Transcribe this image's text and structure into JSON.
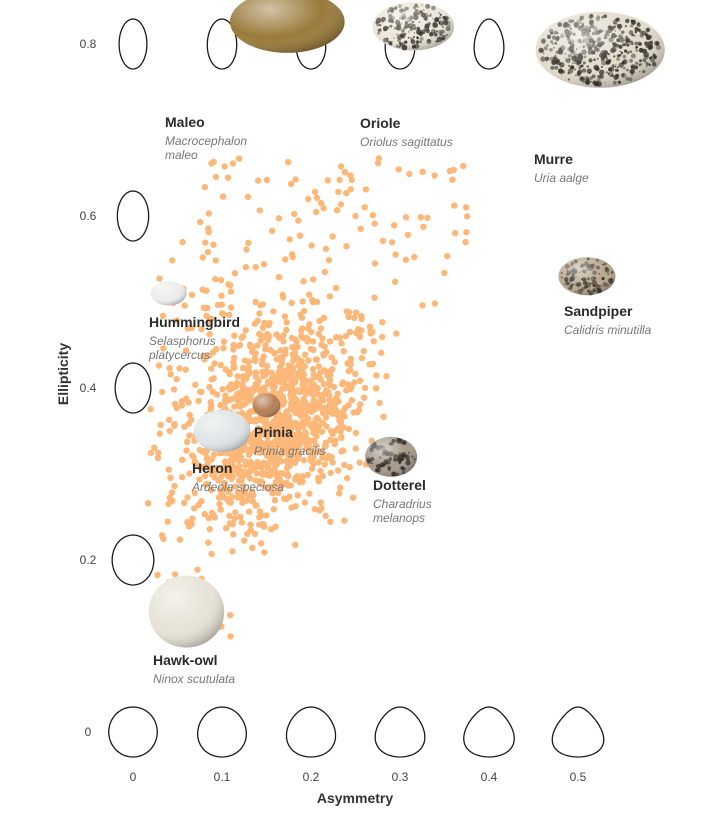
{
  "chart_data": {
    "type": "scatter",
    "title": "",
    "xlabel": "Asymmetry",
    "ylabel": "Ellipticity",
    "xlim": [
      0,
      0.6
    ],
    "ylim": [
      0,
      0.8
    ],
    "x_ticks": [
      "0",
      "0.1",
      "0.2",
      "0.3",
      "0.4",
      "0.5"
    ],
    "y_ticks": [
      "0",
      "0.2",
      "0.4",
      "0.6",
      "0.8"
    ],
    "point_color": "#fdb879",
    "outline_color": "#1a1a1a",
    "point_count": 1400,
    "highlighted_species": [
      {
        "name": "Maleo",
        "latin": [
          "Macrocephalon",
          "maleo"
        ],
        "asymmetry": 0.07,
        "ellipticity": 0.77,
        "egg_color": "#9a7a3a",
        "speckled": false
      },
      {
        "name": "Oriole",
        "latin": [
          "Oriolus sagittatus"
        ],
        "asymmetry": 0.27,
        "ellipticity": 0.76,
        "egg_color": "#ece6d8",
        "speckled": true
      },
      {
        "name": "Murre",
        "latin": [
          "Uria aalge"
        ],
        "asymmetry": 0.48,
        "ellipticity": 0.72,
        "egg_color": "#e2dccb",
        "speckled": true
      },
      {
        "name": "Hummingbird",
        "latin": [
          "Selasphorus",
          "platycercus"
        ],
        "asymmetry": 0.04,
        "ellipticity": 0.51,
        "egg_color": "#ececea",
        "speckled": false
      },
      {
        "name": "Sandpiper",
        "latin": [
          "Calidris minutilla"
        ],
        "asymmetry": 0.51,
        "ellipticity": 0.53,
        "egg_color": "#b9a88e",
        "speckled": true
      },
      {
        "name": "Prinia",
        "latin": [
          "Prinia gracilis"
        ],
        "asymmetry": 0.15,
        "ellipticity": 0.38,
        "egg_color": "#b57f55",
        "speckled": false
      },
      {
        "name": "Heron",
        "latin": [
          "Ardeola speciosa"
        ],
        "asymmetry": 0.1,
        "ellipticity": 0.35,
        "egg_color": "#dfe5e6",
        "speckled": false
      },
      {
        "name": "Dotterel",
        "latin": [
          "Charadrius",
          "melanops"
        ],
        "asymmetry": 0.29,
        "ellipticity": 0.32,
        "egg_color": "#a59a8a",
        "speckled": true
      },
      {
        "name": "Hawk-owl",
        "latin": [
          "Ninox scutulata"
        ],
        "asymmetry": 0.06,
        "ellipticity": 0.14,
        "egg_color": "#e6e2d6",
        "speckled": false
      }
    ],
    "grid": false,
    "legend": "none"
  }
}
